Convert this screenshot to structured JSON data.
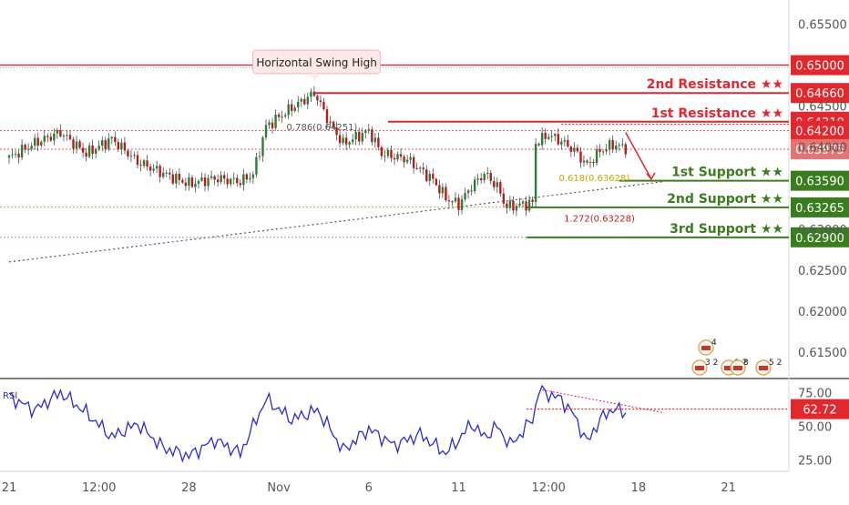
{
  "colors": {
    "candle_up": "#2e7d32",
    "candle_down": "#b71c1c",
    "resistance": "#e0282e",
    "support": "#3a7d1e",
    "rsi_line": "#2b2bd6",
    "dotted_level": "#5b8ad6",
    "fib": "#c8a200"
  },
  "chart_data": [
    {
      "type": "candlestick",
      "title": "",
      "y_axis": {
        "ylim": [
          0.612,
          0.6575
        ],
        "ticks": [
          "0.65500",
          "0.64500",
          "0.64000",
          "0.63000",
          "0.62500",
          "0.62000",
          "0.61500"
        ]
      },
      "x_axis": {
        "ticks": [
          "21",
          "12:00",
          "28",
          "Nov",
          "6",
          "11",
          "12:00",
          "18",
          "21"
        ],
        "tick_positions": [
          0,
          7,
          14,
          21,
          28,
          35,
          42,
          49,
          56
        ]
      },
      "price_path": [
        [
          0,
          0.6387
        ],
        [
          2,
          0.6405
        ],
        [
          4,
          0.6418
        ],
        [
          6,
          0.6392
        ],
        [
          8,
          0.641
        ],
        [
          10,
          0.6382
        ],
        [
          12,
          0.6368
        ],
        [
          14,
          0.6355
        ],
        [
          16,
          0.6362
        ],
        [
          18,
          0.6358
        ],
        [
          19,
          0.6367
        ],
        [
          20,
          0.6425
        ],
        [
          22,
          0.6448
        ],
        [
          23.8,
          0.6466
        ],
        [
          25,
          0.6428
        ],
        [
          26,
          0.6404
        ],
        [
          28,
          0.642
        ],
        [
          29,
          0.6392
        ],
        [
          31,
          0.6385
        ],
        [
          33,
          0.636
        ],
        [
          34,
          0.6338
        ],
        [
          35,
          0.633
        ],
        [
          36,
          0.6352
        ],
        [
          37,
          0.6368
        ],
        [
          38,
          0.6352
        ],
        [
          38.7,
          0.6327
        ],
        [
          40,
          0.633
        ],
        [
          40.8,
          0.6332
        ],
        [
          41,
          0.6405
        ],
        [
          42,
          0.6415
        ],
        [
          43,
          0.6407
        ],
        [
          44,
          0.6396
        ],
        [
          45,
          0.6378
        ],
        [
          46,
          0.6395
        ],
        [
          47,
          0.6403
        ],
        [
          48,
          0.6399
        ]
      ],
      "levels": [
        {
          "label": "2nd Resistance ★★",
          "value": "0.64660",
          "kind": "resistance"
        },
        {
          "label": "1st Resistance ★★",
          "value": "0.64310",
          "kind": "resistance"
        },
        {
          "label": "1st Support ★★",
          "value": "0.63590",
          "kind": "support"
        },
        {
          "label": "2nd Support ★★",
          "value": "0.63265",
          "kind": "support"
        },
        {
          "label": "3rd Support ★★",
          "value": "0.62900",
          "kind": "support"
        }
      ],
      "price_labels": [
        {
          "value": "0.65000",
          "kind": "resistance"
        },
        {
          "value": "0.64200",
          "kind": "resistance"
        },
        {
          "value": "0.63975",
          "kind": "current"
        }
      ],
      "trendline": {
        "from": [
          0,
          0.626
        ],
        "to": [
          51,
          0.6358
        ]
      },
      "horizontal_lines": [
        {
          "value": 0.65,
          "style": "solid",
          "color": "resistance"
        },
        {
          "value": 0.642,
          "style": "dotted",
          "color": "resistance"
        },
        {
          "value": 0.63975,
          "style": "dotted",
          "color": "resistance"
        },
        {
          "value": 0.6327,
          "style": "dotted",
          "color": "fib"
        },
        {
          "value": 0.629,
          "style": "dotted",
          "color": "dotted_level"
        }
      ],
      "annotations": [
        {
          "text": "Horizontal Swing High",
          "type": "callout"
        },
        {
          "text": "0.786(0.64251)",
          "type": "fib"
        },
        {
          "text": "0.618(0.63628)",
          "type": "fib"
        },
        {
          "text": "1.272(0.63228)",
          "type": "fib"
        }
      ],
      "event_badges": [
        "4",
        "3 2",
        "1 2",
        "8",
        "5 2"
      ]
    },
    {
      "type": "line",
      "title": "",
      "series_label": "RSI",
      "y_axis": {
        "ylim": [
          18,
          80
        ],
        "ticks": [
          "75.00",
          "50.00",
          "25.00"
        ]
      },
      "current_value": "62.72",
      "value_path": [
        [
          0,
          72
        ],
        [
          2,
          62
        ],
        [
          4,
          75
        ],
        [
          6,
          60
        ],
        [
          8,
          42
        ],
        [
          10,
          52
        ],
        [
          12,
          34
        ],
        [
          14,
          28
        ],
        [
          16,
          40
        ],
        [
          18,
          30
        ],
        [
          20,
          70
        ],
        [
          22,
          55
        ],
        [
          24,
          62
        ],
        [
          25,
          48
        ],
        [
          26,
          32
        ],
        [
          28,
          48
        ],
        [
          30,
          36
        ],
        [
          32,
          44
        ],
        [
          34,
          30
        ],
        [
          35,
          40
        ],
        [
          36,
          52
        ],
        [
          37,
          42
        ],
        [
          38,
          50
        ],
        [
          39,
          36
        ],
        [
          40,
          46
        ],
        [
          40.9,
          58
        ],
        [
          41.2,
          77
        ],
        [
          43,
          70
        ],
        [
          44,
          58
        ],
        [
          45,
          38
        ],
        [
          46,
          55
        ],
        [
          47,
          63
        ],
        [
          48,
          60
        ]
      ],
      "dashed_resistance_y": 62.72,
      "falling_trendline": {
        "from": [
          41.5,
          77
        ],
        "to": [
          51,
          60
        ]
      }
    }
  ]
}
